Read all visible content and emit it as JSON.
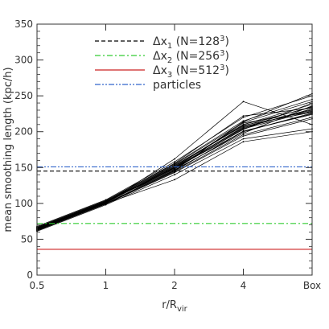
{
  "chart_data": {
    "type": "line",
    "title": "",
    "xlabel_main": "r/R",
    "xlabel_sub": "vir",
    "ylabel": "mean smoothing length (kpc/h)",
    "xlim": [
      0,
      4
    ],
    "ylim": [
      0,
      350
    ],
    "x_ticks": [
      {
        "pos": 0,
        "label": "0.5"
      },
      {
        "pos": 1,
        "label": "1"
      },
      {
        "pos": 2,
        "label": "2"
      },
      {
        "pos": 3,
        "label": "4"
      },
      {
        "pos": 4,
        "label": "Box"
      }
    ],
    "y_ticks": [
      0,
      50,
      100,
      150,
      200,
      250,
      300,
      350
    ],
    "grid": false,
    "legend_position": "top-left",
    "reference_lines": [
      {
        "name": "dx1",
        "legend_prefix": "Δx",
        "legend_sub": "1",
        "legend_mid": " (N=128",
        "legend_sup": "3",
        "legend_suffix": ")",
        "y": 145,
        "color": "#000000",
        "style": "dashed"
      },
      {
        "name": "dx2",
        "legend_prefix": "Δx",
        "legend_sub": "2",
        "legend_mid": " (N=256",
        "legend_sup": "3",
        "legend_suffix": ")",
        "y": 72,
        "color": "#33cc33",
        "style": "dashdot"
      },
      {
        "name": "dx3",
        "legend_prefix": "Δx",
        "legend_sub": "3",
        "legend_mid": " (N=512",
        "legend_sup": "3",
        "legend_suffix": ")",
        "y": 36,
        "color": "#cc2222",
        "style": "solid"
      },
      {
        "name": "particles",
        "legend_prefix": "particles",
        "legend_sub": "",
        "legend_mid": "",
        "legend_sup": "",
        "legend_suffix": "",
        "y": 151,
        "color": "#3366cc",
        "style": "dashdotdot"
      }
    ],
    "curves_color": "#000000",
    "curves": [
      [
        64,
        101,
        150,
        205,
        232
      ],
      [
        66,
        103,
        152,
        210,
        238
      ],
      [
        62,
        99,
        146,
        200,
        226
      ],
      [
        67,
        104,
        155,
        215,
        245
      ],
      [
        65,
        102,
        148,
        207,
        230
      ],
      [
        63,
        100,
        144,
        196,
        220
      ],
      [
        68,
        105,
        158,
        220,
        250
      ],
      [
        64,
        101,
        150,
        212,
        228
      ],
      [
        61,
        98,
        140,
        190,
        204
      ],
      [
        66,
        102,
        153,
        208,
        235
      ],
      [
        65,
        103,
        149,
        203,
        240
      ],
      [
        63,
        100,
        147,
        198,
        236
      ],
      [
        67,
        104,
        156,
        222,
        233
      ],
      [
        64,
        101,
        151,
        209,
        227
      ],
      [
        62,
        99,
        143,
        194,
        218
      ],
      [
        66,
        103,
        154,
        213,
        242
      ],
      [
        65,
        102,
        150,
        206,
        231
      ],
      [
        63,
        100,
        145,
        201,
        224
      ],
      [
        64,
        101,
        152,
        210,
        234
      ],
      [
        66,
        102,
        148,
        204,
        229
      ],
      [
        65,
        101,
        162,
        242,
        210
      ],
      [
        62,
        100,
        133,
        186,
        200
      ],
      [
        66,
        103,
        146,
        214,
        253
      ],
      [
        64,
        102,
        150,
        200,
        225
      ]
    ]
  }
}
